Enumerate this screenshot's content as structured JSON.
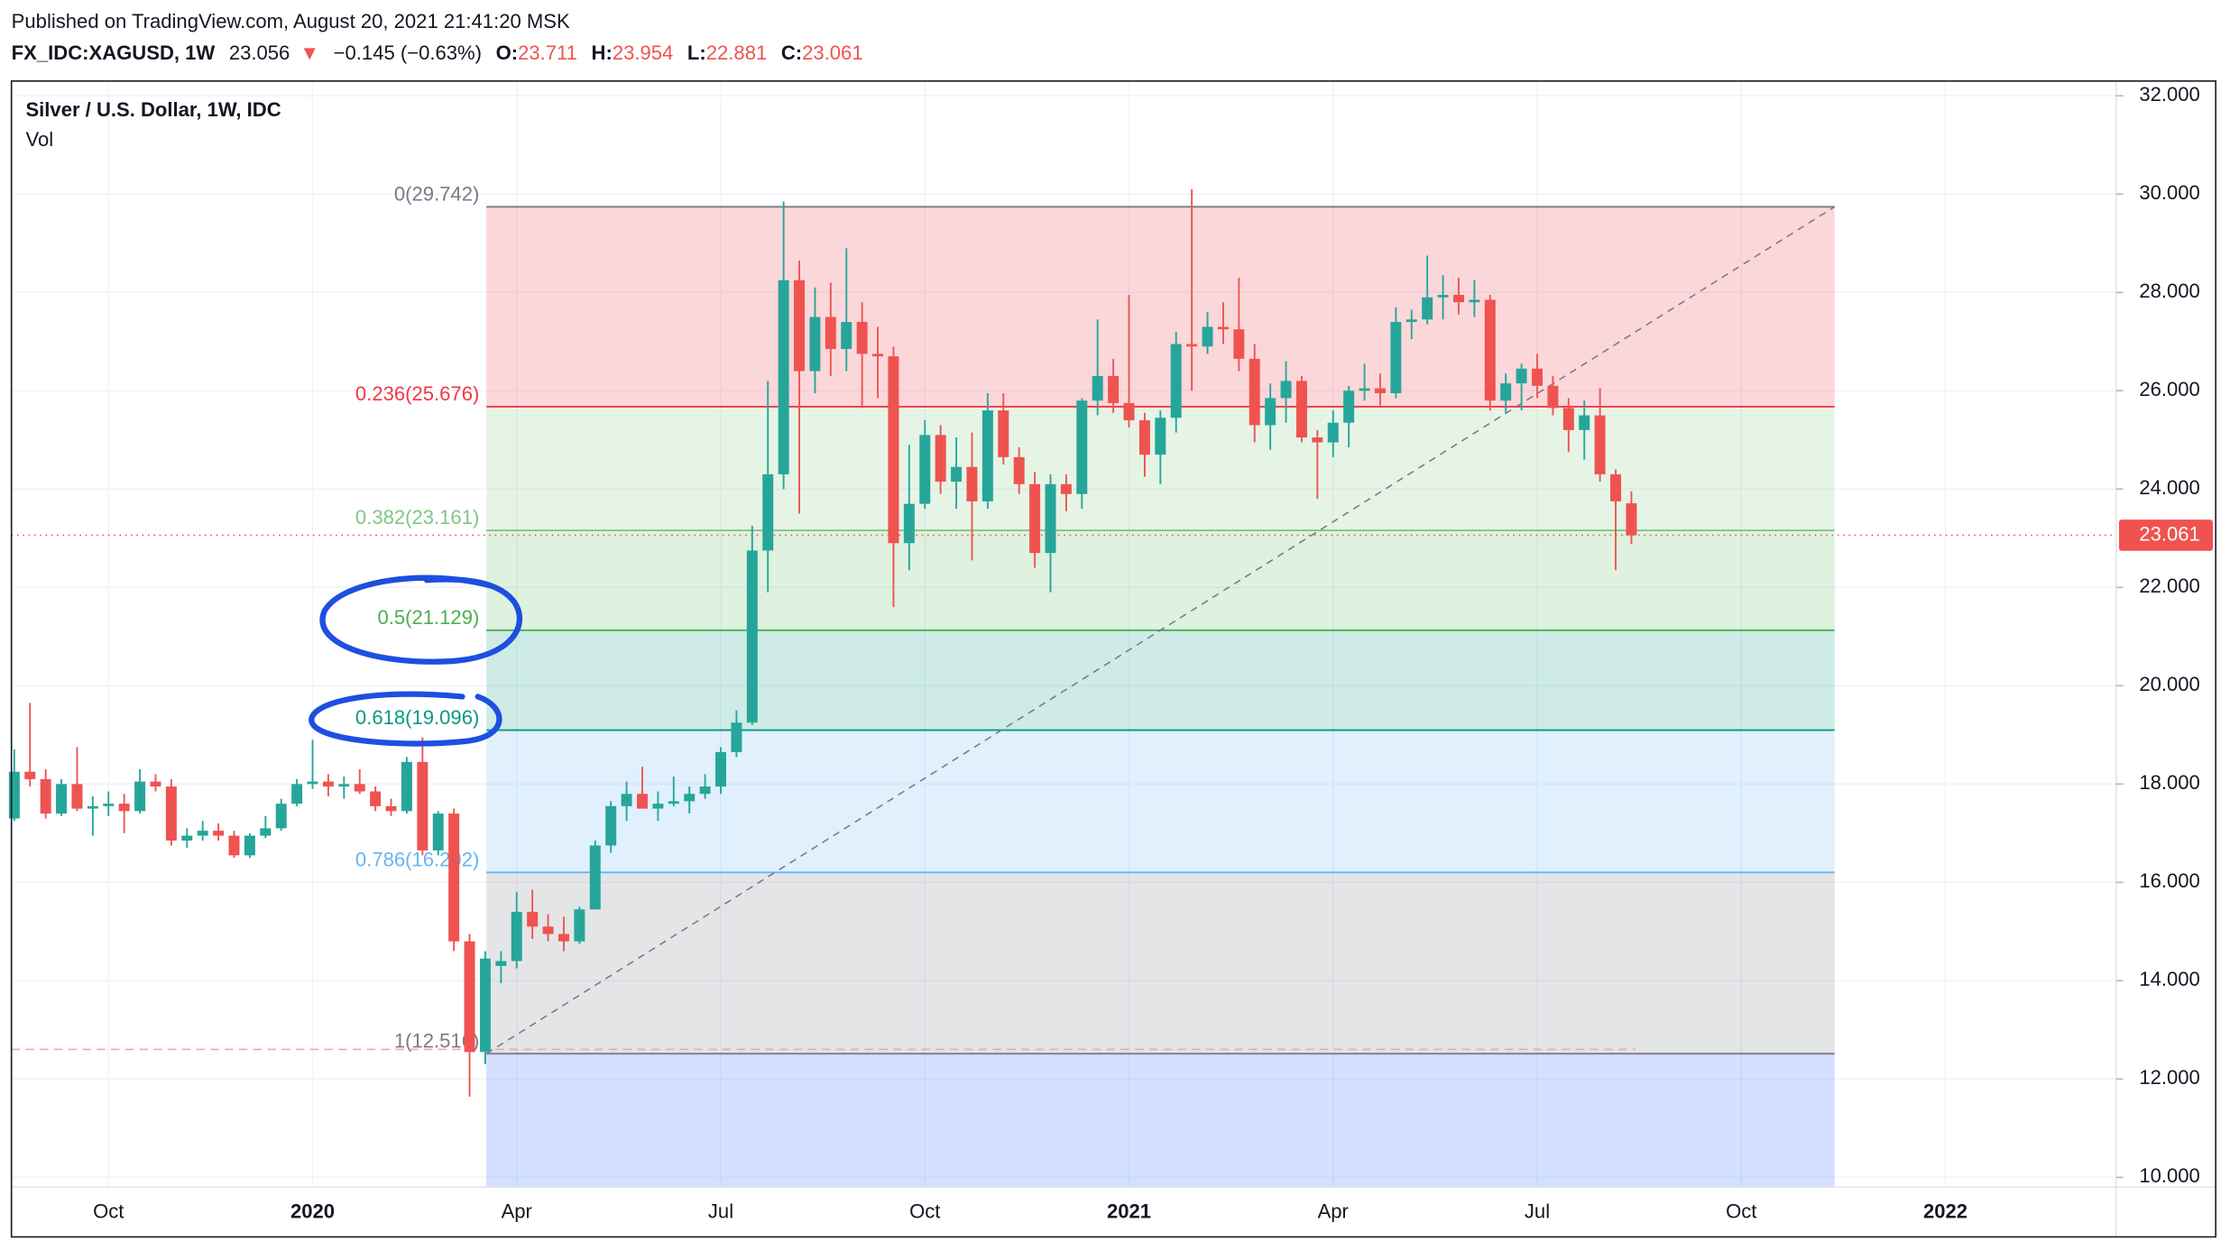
{
  "header": {
    "published": "Published on TradingView.com, August 20, 2021 21:41:20 MSK",
    "symbol": "FX_IDC:XAGUSD, 1W",
    "price": "23.056",
    "arrow": "▼",
    "change": "−0.145 (−0.63%)",
    "ohlc": [
      {
        "key": "O:",
        "value": "23.711"
      },
      {
        "key": "H:",
        "value": "23.954"
      },
      {
        "key": "L:",
        "value": "22.881"
      },
      {
        "key": "C:",
        "value": "23.061"
      }
    ]
  },
  "chart_data": {
    "type": "candlestick",
    "title": "Silver / U.S. Dollar, 1W, IDC",
    "indicator": "Vol",
    "up_color": "#26a69a",
    "down_color": "#ef5350",
    "categories": [
      null,
      null,
      null,
      null,
      null,
      null,
      "Oct",
      null,
      null,
      null,
      null,
      null,
      null,
      null,
      null,
      null,
      null,
      null,
      null,
      "2020",
      null,
      null,
      null,
      null,
      null,
      null,
      null,
      null,
      null,
      null,
      null,
      null,
      "Apr",
      null,
      null,
      null,
      null,
      null,
      null,
      null,
      null,
      null,
      null,
      null,
      null,
      "Jul",
      null,
      null,
      null,
      null,
      null,
      null,
      null,
      null,
      null,
      null,
      null,
      null,
      "Oct",
      null,
      null,
      null,
      null,
      null,
      null,
      null,
      null,
      null,
      null,
      null,
      null,
      "2021",
      null,
      null,
      null,
      null,
      null,
      null,
      null,
      null,
      null,
      null,
      null,
      null,
      "Apr",
      null,
      null,
      null,
      null,
      null,
      null,
      null,
      null,
      null,
      null,
      null,
      null,
      "Jul",
      null,
      null,
      null,
      null,
      null,
      null,
      null,
      null,
      null,
      null,
      null,
      null,
      "Oct",
      null,
      null,
      null,
      null,
      null,
      null,
      null,
      null,
      null,
      null,
      null,
      null,
      "2022",
      null,
      null,
      null,
      null,
      null,
      null,
      null,
      null,
      null,
      null
    ],
    "open": [
      17.3,
      18.25,
      18.1,
      17.4,
      18.0,
      17.5,
      17.55,
      17.6,
      17.45,
      18.05,
      17.95,
      16.85,
      16.95,
      17.05,
      16.95,
      16.55,
      16.95,
      17.1,
      17.6,
      18.0,
      18.05,
      17.95,
      18.0,
      17.85,
      17.55,
      17.45,
      18.45,
      16.65,
      17.4,
      14.8,
      12.55,
      14.3,
      14.4,
      15.4,
      15.1,
      14.95,
      14.8,
      15.45,
      16.75,
      17.55,
      17.8,
      17.5,
      17.6,
      17.65,
      17.8,
      17.95,
      18.65,
      19.25,
      22.75,
      24.3,
      28.25,
      26.4,
      27.5,
      26.85,
      27.4,
      26.75,
      26.7,
      22.9,
      23.7,
      25.1,
      24.15,
      24.45,
      23.75,
      25.6,
      24.65,
      24.1,
      22.7,
      24.1,
      23.9,
      25.8,
      26.3,
      25.75,
      25.4,
      24.7,
      25.45,
      26.95,
      26.9,
      27.3,
      27.25,
      26.65,
      25.3,
      25.85,
      26.2,
      25.05,
      24.95,
      25.35,
      26.0,
      26.05,
      25.95,
      27.4,
      27.45,
      27.9,
      27.95,
      27.8,
      27.85,
      25.8,
      26.15,
      26.45,
      26.1,
      25.65,
      25.2,
      25.5,
      24.3,
      23.711,
      null,
      null,
      null,
      null,
      null,
      null,
      null,
      null,
      null,
      null,
      null,
      null,
      null,
      null,
      null,
      null,
      null,
      null,
      null,
      null,
      null,
      null,
      null,
      null,
      null,
      null,
      null,
      null,
      null,
      null
    ],
    "high": [
      18.7,
      19.65,
      18.3,
      18.1,
      18.75,
      17.75,
      17.85,
      17.8,
      18.3,
      18.2,
      18.1,
      17.1,
      17.25,
      17.2,
      17.05,
      17.0,
      17.35,
      17.7,
      18.1,
      18.9,
      18.2,
      18.15,
      18.3,
      17.95,
      17.7,
      18.55,
      18.95,
      17.45,
      17.5,
      14.95,
      14.6,
      14.6,
      15.8,
      15.85,
      15.35,
      15.3,
      15.5,
      16.85,
      17.65,
      18.05,
      18.35,
      17.85,
      18.15,
      17.95,
      18.2,
      18.75,
      19.5,
      23.25,
      26.2,
      29.85,
      28.65,
      28.1,
      28.2,
      28.9,
      27.8,
      27.3,
      26.9,
      24.9,
      25.4,
      25.3,
      25.05,
      25.15,
      25.95,
      25.95,
      24.85,
      24.35,
      24.3,
      24.3,
      25.85,
      27.45,
      26.65,
      27.95,
      25.55,
      25.6,
      27.2,
      30.1,
      27.6,
      27.8,
      28.3,
      26.95,
      26.15,
      26.6,
      26.3,
      25.2,
      25.6,
      26.1,
      26.55,
      26.35,
      27.7,
      27.65,
      28.75,
      28.35,
      28.3,
      28.25,
      27.95,
      26.35,
      26.55,
      26.75,
      26.3,
      25.85,
      25.8,
      26.05,
      24.4,
      23.954,
      null,
      null,
      null,
      null,
      null,
      null,
      null,
      null,
      null,
      null,
      null,
      null,
      null,
      null,
      null,
      null,
      null,
      null,
      null,
      null,
      null,
      null,
      null,
      null,
      null,
      null,
      null,
      null,
      null,
      null
    ],
    "low": [
      17.25,
      17.95,
      17.3,
      17.35,
      17.45,
      16.95,
      17.35,
      17.0,
      17.4,
      17.85,
      16.75,
      16.7,
      16.85,
      16.85,
      16.5,
      16.5,
      16.9,
      17.05,
      17.55,
      17.9,
      17.75,
      17.7,
      17.8,
      17.45,
      17.35,
      17.4,
      16.55,
      16.55,
      14.6,
      11.64,
      12.3,
      13.95,
      14.25,
      14.85,
      14.8,
      14.6,
      14.75,
      15.45,
      16.6,
      17.25,
      17.5,
      17.25,
      17.55,
      17.4,
      17.7,
      17.8,
      18.55,
      19.2,
      21.9,
      24.0,
      23.5,
      25.95,
      26.3,
      26.4,
      25.65,
      25.85,
      21.6,
      22.35,
      23.6,
      23.9,
      23.6,
      22.55,
      23.6,
      24.5,
      23.9,
      22.4,
      21.9,
      23.55,
      23.6,
      25.5,
      25.55,
      25.25,
      24.25,
      24.1,
      25.15,
      26.0,
      26.75,
      26.95,
      26.4,
      24.95,
      24.8,
      25.35,
      24.95,
      23.8,
      24.65,
      24.85,
      25.8,
      25.7,
      25.85,
      27.05,
      27.35,
      27.45,
      27.55,
      27.5,
      25.6,
      25.55,
      25.6,
      25.85,
      25.5,
      24.75,
      24.6,
      24.15,
      22.35,
      22.881,
      null,
      null,
      null,
      null,
      null,
      null,
      null,
      null,
      null,
      null,
      null,
      null,
      null,
      null,
      null,
      null,
      null,
      null,
      null,
      null,
      null,
      null,
      null,
      null,
      null,
      null,
      null,
      null,
      null,
      null
    ],
    "close": [
      18.25,
      18.1,
      17.4,
      18.0,
      17.5,
      17.55,
      17.6,
      17.45,
      18.05,
      17.95,
      16.85,
      16.95,
      17.05,
      16.95,
      16.55,
      16.95,
      17.1,
      17.6,
      18.0,
      18.05,
      17.95,
      18.0,
      17.85,
      17.55,
      17.45,
      18.45,
      16.65,
      17.4,
      14.8,
      12.55,
      14.45,
      14.4,
      15.4,
      15.1,
      14.95,
      14.8,
      15.45,
      16.75,
      17.55,
      17.8,
      17.5,
      17.6,
      17.65,
      17.8,
      17.95,
      18.65,
      19.25,
      22.75,
      24.3,
      28.25,
      26.4,
      27.5,
      26.85,
      27.4,
      26.75,
      26.7,
      22.9,
      23.7,
      25.1,
      24.15,
      24.45,
      23.75,
      25.6,
      24.65,
      24.1,
      22.7,
      24.1,
      23.9,
      25.8,
      26.3,
      25.75,
      25.4,
      24.7,
      25.45,
      26.95,
      26.9,
      27.3,
      27.25,
      26.65,
      25.3,
      25.85,
      26.2,
      25.05,
      24.95,
      25.35,
      26.0,
      26.05,
      25.95,
      27.4,
      27.45,
      27.9,
      27.95,
      27.8,
      27.85,
      25.8,
      26.15,
      26.45,
      26.1,
      25.65,
      25.2,
      25.5,
      24.3,
      23.75,
      23.061,
      null,
      null,
      null,
      null,
      null,
      null,
      null,
      null,
      null,
      null,
      null,
      null,
      null,
      null,
      null,
      null,
      null,
      null,
      null,
      null,
      null,
      null,
      null,
      null,
      null,
      null,
      null,
      null,
      null,
      null
    ],
    "ylim": [
      9.8,
      32.3
    ],
    "yticks": [
      {
        "value": 10,
        "label": "10.000"
      },
      {
        "value": 12,
        "label": "12.000"
      },
      {
        "value": 14,
        "label": "14.000"
      },
      {
        "value": 16,
        "label": "16.000"
      },
      {
        "value": 18,
        "label": "18.000"
      },
      {
        "value": 20,
        "label": "20.000"
      },
      {
        "value": 22,
        "label": "22.000"
      },
      {
        "value": 24,
        "label": "24.000"
      },
      {
        "value": 26,
        "label": "26.000"
      },
      {
        "value": 28,
        "label": "28.000"
      },
      {
        "value": 30,
        "label": "30.000"
      },
      {
        "value": 32,
        "label": "32.000"
      }
    ],
    "grid": true,
    "fibonacci": {
      "levels": [
        {
          "label": "0(29.742)",
          "value": 29.742,
          "color": "#787b86",
          "fill": "rgba(242,54,69,0.2)"
        },
        {
          "label": "0.236(25.676)",
          "value": 25.676,
          "color": "#f23645",
          "fill": "rgba(129,199,132,0.2)"
        },
        {
          "label": "0.382(23.161)",
          "value": 23.161,
          "color": "#81c784",
          "fill": "rgba(76,175,80,0.18)"
        },
        {
          "label": "0.5(21.129)",
          "value": 21.129,
          "color": "#4caf50",
          "fill": "rgba(8,153,129,0.2)"
        },
        {
          "label": "0.618(19.096)",
          "value": 19.096,
          "color": "#089981",
          "fill": "rgba(100,181,246,0.2)"
        },
        {
          "label": "0.786(16.202)",
          "value": 16.202,
          "color": "#64b5f6",
          "fill": "rgba(120,123,134,0.2)"
        },
        {
          "label": "1(12.516)",
          "value": 12.516,
          "color": "#787b86",
          "fill": "rgba(41,98,255,0.2)"
        }
      ]
    }
  }
}
